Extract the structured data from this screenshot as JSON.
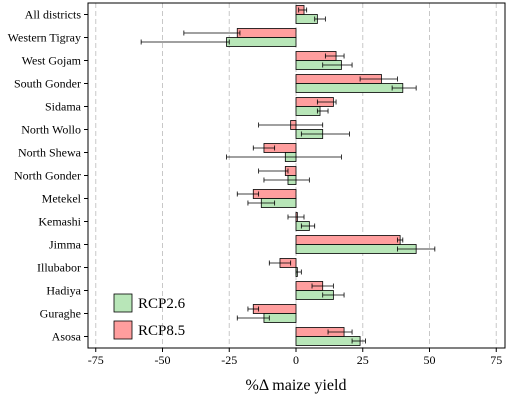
{
  "chart_data": {
    "type": "bar",
    "orientation": "horizontal",
    "xlabel": "%Δ maize yield",
    "xlim": [
      -80,
      80
    ],
    "xticks": [
      -75,
      -50,
      -25,
      0,
      25,
      50,
      75
    ],
    "grid": "vertical dashed",
    "legend_position": "bottom-left",
    "categories": [
      "All districts",
      "Western Tigray",
      "West Gojam",
      "South Gonder",
      "Sidama",
      "North Wollo",
      "North Shewa",
      "North Gonder",
      "Metekel",
      "Kemashi",
      "Jimma",
      "Illubabor",
      "Hadiya",
      "Guraghe",
      "Asosa"
    ],
    "series": [
      {
        "name": "RCP2.6",
        "color": "#b8e6b8",
        "values": [
          8,
          -26,
          17,
          40,
          9,
          10,
          -4,
          -3,
          -13,
          5,
          45,
          0.5,
          14,
          -12,
          24
        ],
        "err_low": [
          7,
          -58,
          10,
          36,
          8,
          2,
          -26,
          -12,
          -18,
          2,
          38,
          0,
          10,
          -22,
          21
        ],
        "err_high": [
          11,
          -25,
          21,
          45,
          12,
          20,
          17,
          5,
          -8,
          7,
          52,
          2,
          18,
          -10,
          26
        ]
      },
      {
        "name": "RCP8.5",
        "color": "#ff9e9e",
        "values": [
          3,
          -22,
          15,
          32,
          14,
          -2,
          -12,
          -4,
          -16,
          0.5,
          39,
          -6,
          10,
          -16,
          18
        ],
        "err_low": [
          1,
          -42,
          11,
          24,
          8,
          -14,
          -16,
          -14,
          -22,
          -3,
          38,
          -10,
          6,
          -18,
          12
        ],
        "err_high": [
          4,
          -21,
          18,
          38,
          15,
          10,
          -8,
          -3,
          -14,
          3,
          40,
          -2,
          14,
          -14,
          21
        ]
      }
    ]
  }
}
